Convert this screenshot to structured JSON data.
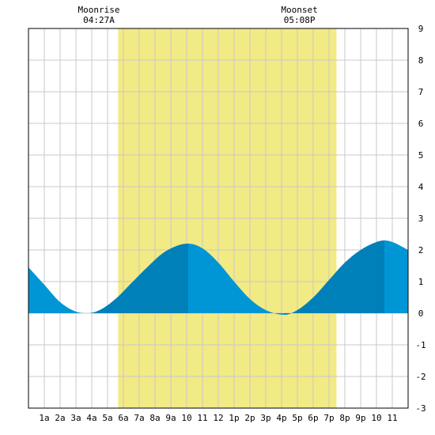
{
  "chart_data": {
    "type": "area",
    "title": "",
    "xlabel": "",
    "ylabel": "",
    "xlim": [
      0,
      24
    ],
    "ylim": [
      -3,
      9
    ],
    "grid": true,
    "x_ticks": [
      1,
      2,
      3,
      4,
      5,
      6,
      7,
      8,
      9,
      10,
      11,
      12,
      13,
      14,
      15,
      16,
      17,
      18,
      19,
      20,
      21,
      22,
      23
    ],
    "x_tick_labels": [
      "1a",
      "2a",
      "3a",
      "4a",
      "5a",
      "6a",
      "7a",
      "8a",
      "9a",
      "10",
      "11",
      "12",
      "1p",
      "2p",
      "3p",
      "4p",
      "5p",
      "6p",
      "7p",
      "8p",
      "9p",
      "10",
      "11"
    ],
    "y_ticks": [
      -3,
      -2,
      -1,
      0,
      1,
      2,
      3,
      4,
      5,
      6,
      7,
      8,
      9
    ],
    "y_tick_labels": [
      "-3",
      "-2",
      "-1",
      "0",
      "1",
      "2",
      "3",
      "4",
      "5",
      "6",
      "7",
      "8",
      "9"
    ],
    "daylight": [
      5.67,
      19.47
    ],
    "moon": [
      {
        "label": "Moonrise",
        "time": "04:27A",
        "x": 4.45
      },
      {
        "label": "Moonset",
        "time": "05:08P",
        "x": 17.13
      }
    ],
    "tide_extremes": [
      {
        "x": 3.75,
        "y": 0.0
      },
      {
        "x": 10.1,
        "y": 2.2
      },
      {
        "x": 16.2,
        "y": -0.05
      },
      {
        "x": 22.5,
        "y": 2.3
      }
    ],
    "series": [
      {
        "values": [
          [
            0,
            1.45
          ],
          [
            1,
            0.9
          ],
          [
            2,
            0.35
          ],
          [
            3,
            0.05
          ],
          [
            3.75,
            0.0
          ],
          [
            4.5,
            0.1
          ],
          [
            5.5,
            0.45
          ],
          [
            6.5,
            0.95
          ],
          [
            7.5,
            1.45
          ],
          [
            8.5,
            1.9
          ],
          [
            9.5,
            2.15
          ],
          [
            10.1,
            2.2
          ],
          [
            11,
            2.05
          ],
          [
            12,
            1.6
          ],
          [
            13,
            1.0
          ],
          [
            14,
            0.45
          ],
          [
            15,
            0.1
          ],
          [
            16.2,
            -0.05
          ],
          [
            17,
            0.1
          ],
          [
            18,
            0.5
          ],
          [
            19,
            1.05
          ],
          [
            20,
            1.6
          ],
          [
            21,
            2.0
          ],
          [
            22,
            2.25
          ],
          [
            22.5,
            2.3
          ],
          [
            23,
            2.25
          ],
          [
            24,
            2.0
          ]
        ]
      }
    ],
    "colors": {
      "daylight": "#f2ea84",
      "grid": "#c8c8c8",
      "tide_rising": "#0080b8",
      "tide_falling": "#0096d6",
      "frame": "#000000"
    }
  }
}
